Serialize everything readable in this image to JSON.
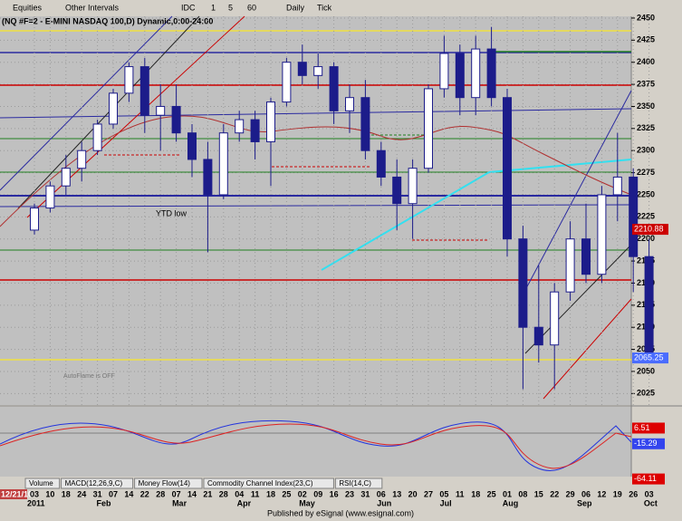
{
  "toolbar": {
    "items": [
      "Equities",
      "Other Intervals",
      "IDC",
      "1",
      "5",
      "60",
      "Daily",
      "Tick"
    ]
  },
  "chart_data": {
    "type": "candlestick",
    "title": "(NQ #F=2 - E-MINI NASDAQ 100,D) Dynamic,0:00-24:00",
    "start_label": "12/21/10",
    "categories": [
      "03",
      "10",
      "18",
      "24",
      "31",
      "07",
      "14",
      "22",
      "28",
      "07",
      "14",
      "21",
      "28",
      "04",
      "11",
      "18",
      "25",
      "02",
      "09",
      "16",
      "23",
      "31",
      "06",
      "13",
      "20",
      "27",
      "05",
      "11",
      "18",
      "25",
      "01",
      "08",
      "15",
      "22",
      "29",
      "06",
      "12",
      "19",
      "26",
      "03"
    ],
    "months": [
      "2011",
      "Feb",
      "Mar",
      "Apr",
      "May",
      "Jun",
      "Jul",
      "Aug",
      "Sep",
      "Oct"
    ],
    "open": [
      2210,
      2235,
      2260,
      2280,
      2300,
      2330,
      2365,
      2395,
      2340,
      2350,
      2320,
      2290,
      2250,
      2320,
      2335,
      2310,
      2355,
      2400,
      2385,
      2395,
      2345,
      2360,
      2300,
      2270,
      2240,
      2280,
      2370,
      2410,
      2360,
      2415,
      2360,
      2200,
      2100,
      2080,
      2140,
      2200,
      2160,
      2250,
      2270,
      2180
    ],
    "high": [
      2240,
      2265,
      2295,
      2310,
      2335,
      2370,
      2400,
      2405,
      2375,
      2375,
      2330,
      2310,
      2330,
      2345,
      2345,
      2360,
      2405,
      2420,
      2410,
      2400,
      2375,
      2380,
      2310,
      2290,
      2290,
      2375,
      2430,
      2420,
      2430,
      2440,
      2370,
      2215,
      2170,
      2150,
      2220,
      2240,
      2260,
      2320,
      2280,
      2200
    ],
    "low": [
      2205,
      2230,
      2250,
      2265,
      2295,
      2325,
      2355,
      2320,
      2300,
      2310,
      2270,
      2185,
      2245,
      2310,
      2290,
      2260,
      2350,
      2375,
      2370,
      2330,
      2320,
      2290,
      2260,
      2210,
      2200,
      2275,
      2360,
      2340,
      2340,
      2350,
      2180,
      2030,
      2060,
      2030,
      2130,
      2150,
      2150,
      2220,
      2140,
      2060
    ],
    "close": [
      2235,
      2260,
      2280,
      2300,
      2330,
      2365,
      2395,
      2340,
      2350,
      2320,
      2290,
      2250,
      2320,
      2335,
      2310,
      2355,
      2400,
      2385,
      2395,
      2345,
      2360,
      2300,
      2270,
      2240,
      2280,
      2370,
      2410,
      2360,
      2415,
      2360,
      2200,
      2100,
      2080,
      2140,
      2200,
      2160,
      2250,
      2270,
      2180,
      2065
    ],
    "up_color": "#ffffff",
    "down_color": "#1c1c8a",
    "wick_color": "#1c1c8a",
    "ylim": [
      2012,
      2452
    ],
    "yticks": [
      2025,
      2050,
      2075,
      2100,
      2125,
      2150,
      2175,
      2200,
      2225,
      2250,
      2275,
      2300,
      2325,
      2350,
      2375,
      2400,
      2425,
      2450
    ],
    "grid": true,
    "annotation": "YTD low",
    "price_labels": [
      2210.88,
      2065.25
    ],
    "price_label_colors": [
      "#cc0000",
      "#4a6cff"
    ]
  },
  "indicator": {
    "ylim": [
      -47,
      36
    ],
    "labels": [
      6.51,
      -15.29,
      -64.11
    ],
    "label_colors": [
      "#dd0000",
      "#3344ee",
      "#dd0000"
    ]
  },
  "note": "AutoFlame is OFF",
  "tabs": [
    "Volume",
    "MACD(12,26,9,C)",
    "Money Flow(14)",
    "Commodity Channel Index(23,C)",
    "RSI(14,C)"
  ],
  "footer": "Published by eSignal (www.esignal.com)"
}
